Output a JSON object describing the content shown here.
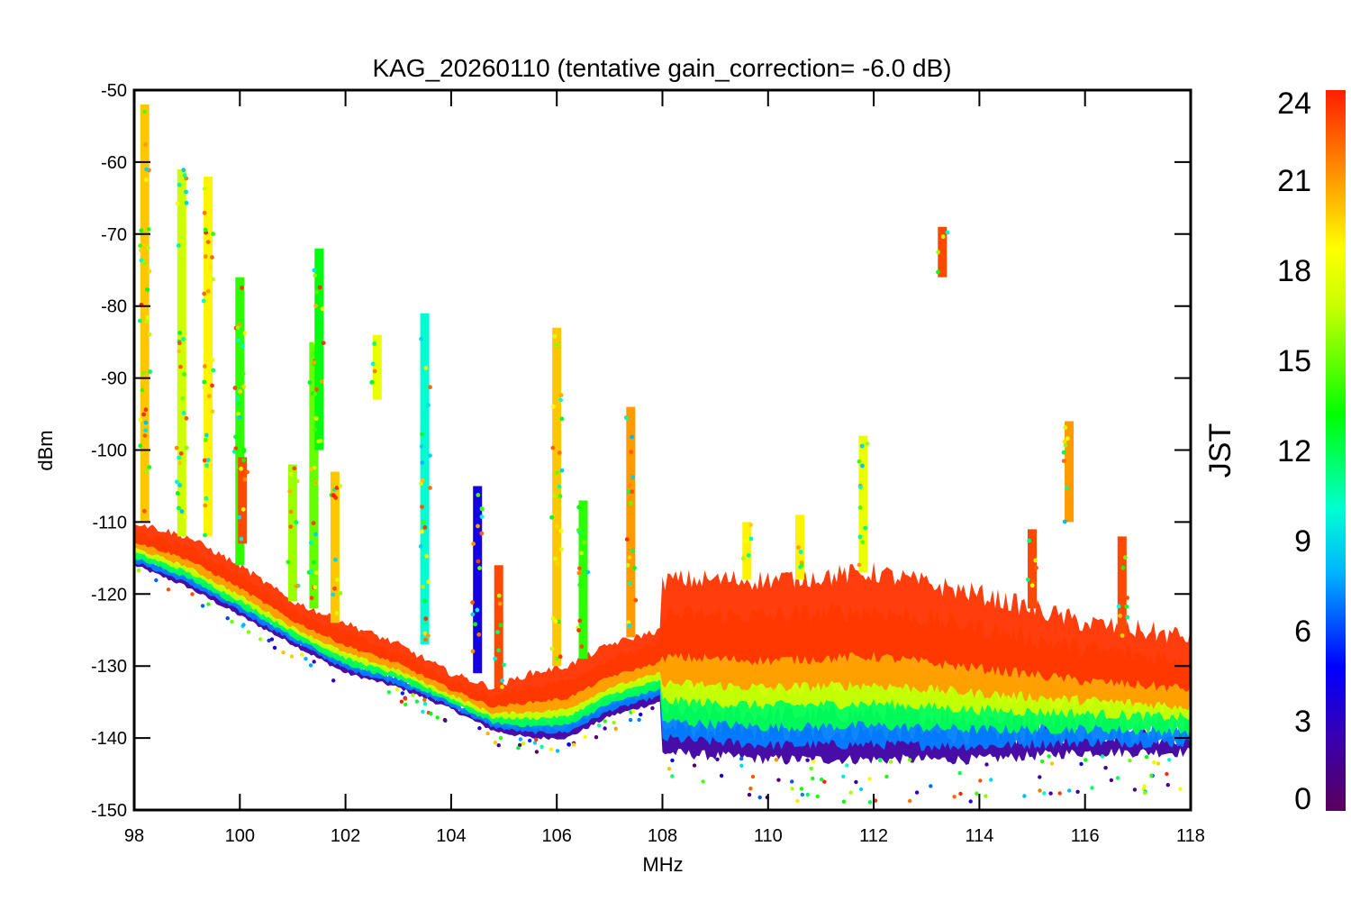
{
  "chart_data": {
    "type": "scatter",
    "title": "KAG_20260110 (tentative gain_correction= -6.0 dB)",
    "xlabel": "MHz",
    "ylabel": "dBm",
    "xlim": [
      98,
      118
    ],
    "ylim": [
      -150,
      -50
    ],
    "xticks": [
      "98",
      "100",
      "102",
      "104",
      "106",
      "108",
      "110",
      "112",
      "114",
      "116",
      "118"
    ],
    "yticks": [
      "-50",
      "-60",
      "-70",
      "-80",
      "-90",
      "-100",
      "-110",
      "-120",
      "-130",
      "-140",
      "-150"
    ],
    "colorbar": {
      "label": "JST",
      "range": [
        0,
        24
      ],
      "ticks": [
        "0",
        "3",
        "6",
        "9",
        "12",
        "15",
        "18",
        "21",
        "24"
      ]
    },
    "noise_floor": [
      {
        "x": 98.0,
        "top": -110,
        "bottom": -116
      },
      {
        "x": 99.0,
        "top": -112,
        "bottom": -119
      },
      {
        "x": 100.0,
        "top": -116,
        "bottom": -123
      },
      {
        "x": 101.0,
        "top": -121,
        "bottom": -127
      },
      {
        "x": 102.0,
        "top": -124,
        "bottom": -131
      },
      {
        "x": 103.0,
        "top": -127,
        "bottom": -133
      },
      {
        "x": 104.0,
        "top": -131,
        "bottom": -136
      },
      {
        "x": 104.8,
        "top": -133,
        "bottom": -139
      },
      {
        "x": 105.5,
        "top": -131,
        "bottom": -140
      },
      {
        "x": 106.2,
        "top": -130,
        "bottom": -140
      },
      {
        "x": 107.0,
        "top": -127,
        "bottom": -137
      },
      {
        "x": 107.95,
        "top": -125,
        "bottom": -135
      },
      {
        "x": 108.0,
        "top": -118,
        "bottom": -142
      },
      {
        "x": 110.0,
        "top": -118,
        "bottom": -143
      },
      {
        "x": 112.0,
        "top": -117,
        "bottom": -143
      },
      {
        "x": 114.0,
        "top": -120,
        "bottom": -143
      },
      {
        "x": 116.0,
        "top": -124,
        "bottom": -142
      },
      {
        "x": 118.0,
        "top": -126,
        "bottom": -142
      }
    ],
    "signals": [
      {
        "freq": 98.2,
        "peak": -52,
        "base": -110,
        "jst": 20
      },
      {
        "freq": 98.9,
        "peak": -61,
        "base": -112,
        "jst": 17
      },
      {
        "freq": 99.4,
        "peak": -62,
        "base": -112,
        "jst": 19
      },
      {
        "freq": 100.0,
        "peak": -76,
        "base": -116,
        "jst": 14
      },
      {
        "freq": 100.05,
        "peak": -101,
        "base": -113,
        "jst": 23
      },
      {
        "freq": 101.0,
        "peak": -102,
        "base": -121,
        "jst": 16
      },
      {
        "freq": 101.4,
        "peak": -85,
        "base": -122,
        "jst": 15
      },
      {
        "freq": 101.5,
        "peak": -72,
        "base": -100,
        "jst": 13
      },
      {
        "freq": 101.8,
        "peak": -103,
        "base": -124,
        "jst": 20
      },
      {
        "freq": 102.6,
        "peak": -84,
        "base": -93,
        "jst": 18
      },
      {
        "freq": 103.5,
        "peak": -81,
        "base": -127,
        "jst": 10
      },
      {
        "freq": 104.5,
        "peak": -105,
        "base": -131,
        "jst": 4
      },
      {
        "freq": 104.9,
        "peak": -116,
        "base": -133,
        "jst": 23
      },
      {
        "freq": 106.0,
        "peak": -83,
        "base": -130,
        "jst": 20
      },
      {
        "freq": 106.5,
        "peak": -107,
        "base": -129,
        "jst": 14
      },
      {
        "freq": 107.4,
        "peak": -94,
        "base": -126,
        "jst": 21
      },
      {
        "freq": 109.6,
        "peak": -110,
        "base": -118,
        "jst": 19
      },
      {
        "freq": 110.6,
        "peak": -109,
        "base": -118,
        "jst": 19
      },
      {
        "freq": 111.8,
        "peak": -98,
        "base": -117,
        "jst": 18
      },
      {
        "freq": 113.3,
        "peak": -69,
        "base": -76,
        "jst": 23
      },
      {
        "freq": 115.0,
        "peak": -111,
        "base": -122,
        "jst": 23
      },
      {
        "freq": 115.7,
        "peak": -96,
        "base": -110,
        "jst": 21
      },
      {
        "freq": 116.7,
        "peak": -112,
        "base": -126,
        "jst": 23
      }
    ]
  }
}
